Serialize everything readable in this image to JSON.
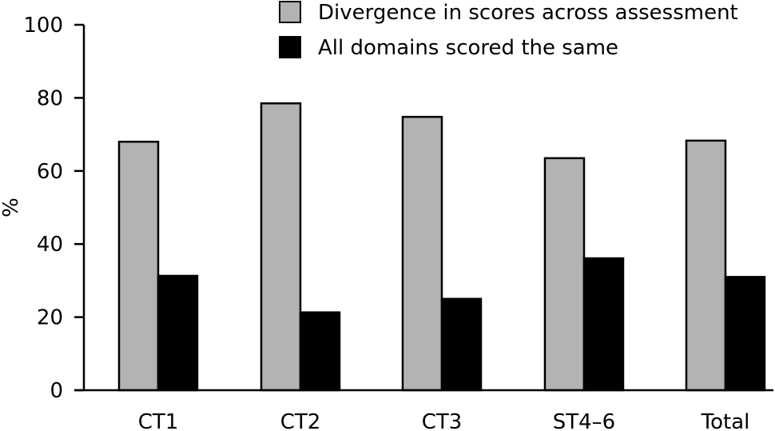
{
  "chart_data": {
    "type": "bar",
    "ylabel": "%",
    "xlabel": "",
    "title": "",
    "ylim": [
      0,
      100
    ],
    "yticks": [
      0,
      20,
      40,
      60,
      80,
      100
    ],
    "categories": [
      "CT1",
      "CT2",
      "CT3",
      "ST4–6",
      "Total"
    ],
    "series": [
      {
        "name": "Divergence in scores across assessment",
        "color": "#b3b3b6",
        "values": [
          68,
          78.5,
          74.8,
          63.5,
          68.3
        ]
      },
      {
        "name": "All domains scored the same",
        "color": "#000000",
        "values": [
          31.3,
          21.3,
          25.0,
          36.1,
          31.0
        ]
      }
    ],
    "legend_position": "top-right",
    "grid": false
  }
}
